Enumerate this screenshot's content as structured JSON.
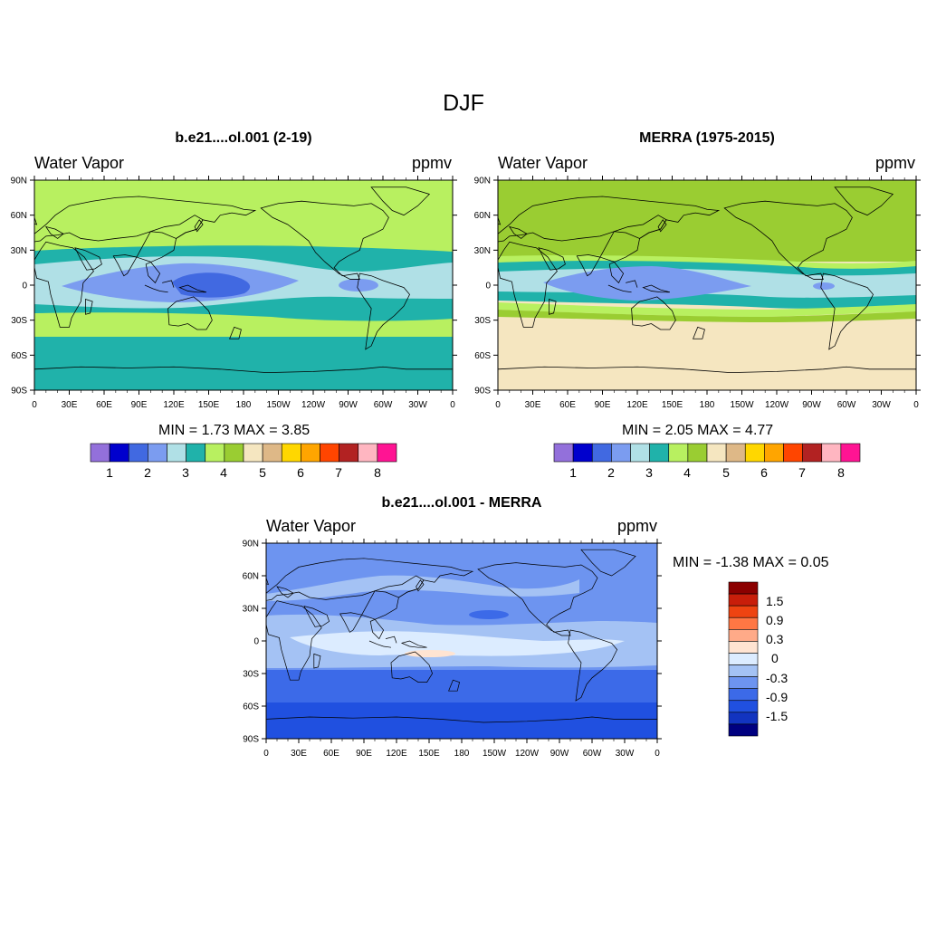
{
  "main_title": "DJF",
  "panels": [
    {
      "title": "b.e21....ol.001 (2-19)",
      "left_label": "Water Vapor",
      "right_label": "ppmv",
      "min_max": "MIN =   1.73  MAX =   3.85"
    },
    {
      "title": "MERRA (1975-2015)",
      "left_label": "Water Vapor",
      "right_label": "ppmv",
      "min_max": "MIN =   2.05  MAX =   4.77"
    },
    {
      "title": "b.e21....ol.001 - MERRA",
      "left_label": "Water Vapor",
      "right_label": "ppmv",
      "min_max": "MIN =  -1.38  MAX =   0.05"
    }
  ],
  "lat_ticks": [
    "90N",
    "60N",
    "30N",
    "0",
    "30S",
    "60S",
    "90S"
  ],
  "lon_ticks": [
    "0",
    "30E",
    "60E",
    "90E",
    "120E",
    "150E",
    "180",
    "150W",
    "120W",
    "90W",
    "60W",
    "30W",
    "0"
  ],
  "colorbar_abs": {
    "colors": [
      "#9370db",
      "#0000cd",
      "#4169e1",
      "#7b9cf0",
      "#b0e0e6",
      "#20b2aa",
      "#b8f060",
      "#9acd32",
      "#f5e6c0",
      "#deb887",
      "#ffd700",
      "#ffa500",
      "#ff4500",
      "#b22222",
      "#ffb6c1",
      "#ff1493"
    ],
    "labels": [
      "1",
      "2",
      "3",
      "4",
      "5",
      "6",
      "7",
      "8"
    ]
  },
  "colorbar_diff": {
    "colors": [
      "#8b0000",
      "#c81e0a",
      "#ee4411",
      "#ff7744",
      "#ffaa88",
      "#ffe4d2",
      "#dcecff",
      "#a4c2f4",
      "#6d94f0",
      "#3c6ae8",
      "#2050e0",
      "#1234c0",
      "#000080"
    ],
    "labels": [
      "1.5",
      "0.9",
      "0.3",
      "0",
      "-0.3",
      "-0.9",
      "-1.5"
    ]
  }
}
